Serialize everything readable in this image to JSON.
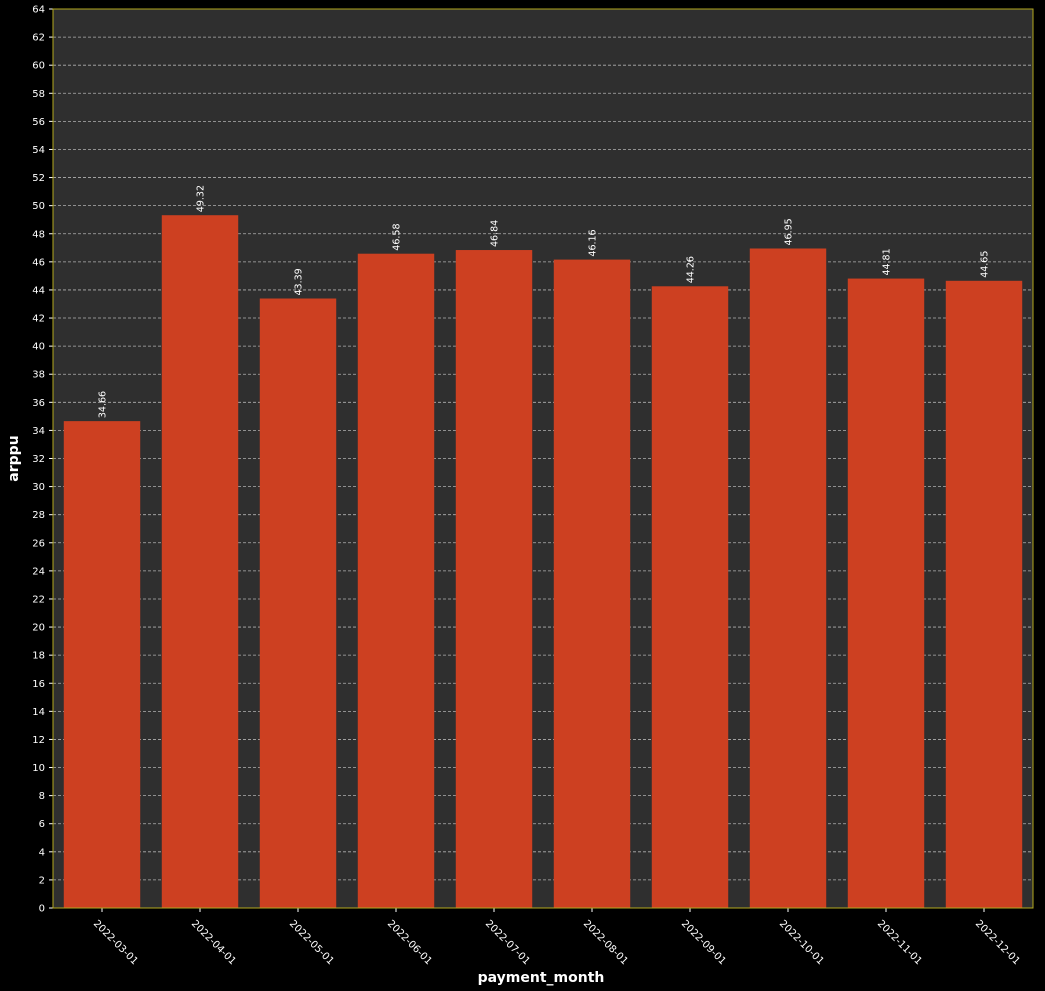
{
  "chart_data": {
    "type": "bar",
    "categories": [
      "2022-03-01",
      "2022-04-01",
      "2022-05-01",
      "2022-06-01",
      "2022-07-01",
      "2022-08-01",
      "2022-09-01",
      "2022-10-01",
      "2022-11-01",
      "2022-12-01"
    ],
    "series": [
      {
        "values": [
          34.66,
          49.32,
          43.39,
          46.58,
          46.84,
          46.16,
          44.26,
          46.95,
          44.81,
          44.65
        ],
        "data_labels": [
          "34.66",
          "49.32",
          "43.39",
          "46.58",
          "46.84",
          "46.16",
          "44.26",
          "46.95",
          "44.81",
          "44.65"
        ]
      }
    ],
    "xlabel": "payment_month",
    "ylabel": "arppu",
    "ylim": [
      0,
      64
    ],
    "yticks": [
      "0",
      "2",
      "4",
      "6",
      "8",
      "10",
      "12",
      "14",
      "16",
      "18",
      "20",
      "22",
      "24",
      "26",
      "28",
      "30",
      "32",
      "34",
      "36",
      "38",
      "40",
      "42",
      "44",
      "46",
      "48",
      "50",
      "52",
      "54",
      "56",
      "58",
      "60",
      "62",
      "64"
    ],
    "grid": "horizontal dashed",
    "legend": "none",
    "colors": {
      "page_background": "#000000",
      "plot_background": "#2f2f2f",
      "bar": "#cd4021",
      "grid": "#c8c8c8",
      "frame": "#b3a81e",
      "text": "#ffffff"
    }
  }
}
